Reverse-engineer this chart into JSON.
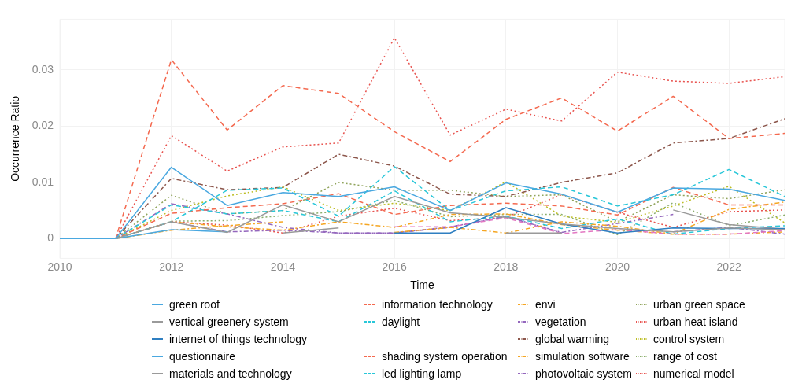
{
  "chart_data": {
    "type": "line",
    "xlabel": "Time",
    "ylabel": "Occurrence Ratio",
    "x": [
      2010,
      2011,
      2012,
      2013,
      2014,
      2015,
      2016,
      2017,
      2018,
      2019,
      2020,
      2021,
      2022,
      2023
    ],
    "xlim": [
      2010,
      2023
    ],
    "xticks": [
      2010,
      2012,
      2014,
      2016,
      2018,
      2020,
      2022
    ],
    "ylim": [
      -0.0035,
      0.039
    ],
    "yticks": [
      0,
      0.01,
      0.02,
      0.03
    ],
    "grid": true,
    "legend": "bottom",
    "marker": "none",
    "series": [
      {
        "name": "green roof",
        "color": "#4aa8e0",
        "line_style": "solid",
        "values": [
          0,
          0,
          0.0127,
          0.0059,
          0.0082,
          0.0075,
          0.0092,
          0.005,
          0.0099,
          0.0079,
          0.0047,
          0.009,
          0.0088,
          0.0068
        ]
      },
      {
        "name": "vertical greenery system",
        "color": "#9a9a9a",
        "line_style": "solid",
        "values": [
          0,
          0,
          0.003,
          0.0011,
          0.006,
          0.003,
          0.0075,
          0.0046,
          0.0038,
          0.0026,
          0.0018,
          0.0012,
          0.0019,
          0.0016
        ]
      },
      {
        "name": "internet of things technology",
        "color": "#2f7fc1",
        "line_style": "solid",
        "values": [
          0,
          0,
          null,
          null,
          null,
          null,
          0.001,
          0.001,
          0.0055,
          0.0026,
          0.001,
          0.0019,
          0.0018,
          0.0018
        ]
      },
      {
        "name": "questionnaire",
        "color": "#4aa8e0",
        "line_style": "solid",
        "values": [
          0,
          0,
          0.0016,
          0.0012,
          null,
          null,
          null,
          null,
          null,
          null,
          null,
          null,
          null,
          null
        ]
      },
      {
        "name": "materials and technology",
        "color": "#9a9a9a",
        "line_style": "solid",
        "values": [
          0,
          0,
          null,
          null,
          0.001,
          0.0019,
          null,
          null,
          0.001,
          0.001,
          null,
          0.0051,
          0.0025,
          0.0017
        ]
      },
      {
        "name": "information technology",
        "color": "#f4694f",
        "line_style": "dashed",
        "values": [
          0,
          0,
          0.0318,
          0.0193,
          0.0272,
          0.0258,
          0.019,
          0.0137,
          0.0212,
          0.025,
          0.0191,
          0.0253,
          0.0178,
          0.0187
        ]
      },
      {
        "name": "daylight",
        "color": "#29c7d9",
        "line_style": "dashed",
        "values": [
          0,
          0,
          0.003,
          0.0086,
          0.009,
          0.004,
          0.0128,
          0.005,
          0.0085,
          0.0092,
          0.0058,
          0.0078,
          0.0123,
          0.0075
        ]
      },
      {
        "color": "#e377c2",
        "line_style": "dashed",
        "values": [
          0,
          0,
          null,
          null,
          null,
          null,
          0.0021,
          0.0021,
          0.0037,
          0.0009,
          0.0016,
          0.0008,
          0.0008,
          0.0014
        ]
      },
      {
        "name": "shading system operation",
        "color": "#f4694f",
        "line_style": "dashed",
        "values": [
          0,
          0,
          0.0045,
          0.0055,
          0.0062,
          0.008,
          0.0043,
          0.0059,
          0.0063,
          0.0058,
          0.0042,
          0.0091,
          0.006,
          0.006
        ]
      },
      {
        "name": "led lighting lamp",
        "color": "#29c7d9",
        "line_style": "dashed",
        "values": [
          0,
          0,
          0.006,
          0.0044,
          0.005,
          0.003,
          0.0085,
          0.003,
          0.004,
          0.0018,
          0.0035,
          0.0008,
          0.0018,
          0.0023
        ]
      },
      {
        "name": "envi",
        "color": "#f5a623",
        "line_style": "dashdot",
        "values": [
          0,
          0,
          0.0015,
          0.0023,
          0.003,
          null,
          0.0011,
          0.002,
          0.001,
          0.003,
          0.0022,
          0.0008,
          0.0008,
          0.0012
        ]
      },
      {
        "name": "vegetation",
        "color": "#9467bd",
        "line_style": "dashdot",
        "values": [
          0,
          0,
          0.0062,
          0.0044,
          0.002,
          0.001,
          0.001,
          0.0021,
          0.0039,
          0.0011,
          0.0027,
          0.0043,
          null,
          null
        ]
      },
      {
        "name": "global warming",
        "color": "#8c564b",
        "line_style": "dashdot",
        "values": [
          0,
          0,
          0.0107,
          0.0087,
          0.0091,
          0.015,
          0.0129,
          0.0079,
          0.0075,
          0.01,
          0.0117,
          0.017,
          0.0178,
          0.0213
        ]
      },
      {
        "name": "simulation software",
        "color": "#f5a623",
        "line_style": "dashdot",
        "values": [
          0,
          0,
          0.003,
          0.0021,
          0.0015,
          0.003,
          0.002,
          0.0043,
          0.0044,
          0.0025,
          0.0015,
          0.0008,
          0.0052,
          0.0065
        ]
      },
      {
        "name": "photovoltaic system",
        "color": "#9467bd",
        "line_style": "dashdot",
        "values": [
          0,
          0,
          0.003,
          0.0012,
          0.0015,
          0.001,
          0.001,
          0.002,
          0.004,
          0.001,
          null,
          0.0012,
          0.002,
          0.0008
        ]
      },
      {
        "name": "urban green space",
        "color": "#8fa35a",
        "line_style": "dotted",
        "values": [
          0,
          0,
          0.0077,
          0.0044,
          0.005,
          0.01,
          0.0086,
          0.0086,
          0.0075,
          0.0078,
          0.003,
          0.0078,
          0.0071,
          0.0087
        ]
      },
      {
        "name": "urban heat island",
        "color": "#e8534f",
        "line_style": "dotted",
        "values": [
          0,
          0,
          0.003,
          0.0024,
          0.001,
          0.004,
          0.0054,
          0.0032,
          0.0038,
          0.0078,
          0.0047,
          0.002,
          0.0048,
          0.0051
        ]
      },
      {
        "name": "control system",
        "color": "#bcbd22",
        "line_style": "dotted",
        "values": [
          0,
          0,
          0.005,
          0.0076,
          0.0092,
          0.005,
          0.0063,
          0.005,
          0.0101,
          0.004,
          0.0029,
          0.0058,
          0.0093,
          0.0028
        ]
      },
      {
        "name": "range of cost",
        "color": "#8aad6b",
        "line_style": "dotted",
        "values": [
          0,
          0,
          0.0031,
          0.0032,
          0.0041,
          0.0048,
          0.0068,
          0.0039,
          0.0043,
          0.0043,
          0.0007,
          0.0064,
          0.0023,
          0.0042
        ]
      },
      {
        "name": "numerical model",
        "color": "#e8534f",
        "line_style": "dotted",
        "values": [
          0,
          0,
          0.0183,
          0.012,
          0.0163,
          0.017,
          0.0357,
          0.0184,
          0.023,
          0.0209,
          0.0296,
          0.028,
          0.0276,
          0.0288
        ]
      }
    ]
  }
}
